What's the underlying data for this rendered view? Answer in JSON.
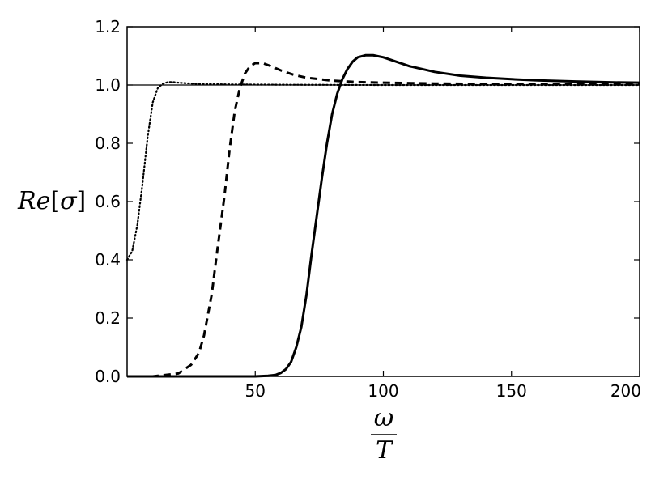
{
  "chart_data": {
    "type": "line",
    "title": "",
    "xlabel": {
      "numerator": "ω",
      "denominator": "T"
    },
    "ylabel": {
      "prefix": "Re",
      "open": "[",
      "symbol": "σ",
      "close": "]"
    },
    "xlim": [
      0,
      200
    ],
    "ylim": [
      0,
      1.2
    ],
    "x_ticks": [
      50,
      100,
      150,
      200
    ],
    "x_tick_labels": [
      "50",
      "100",
      "150",
      "200"
    ],
    "y_ticks": [
      0,
      0.2,
      0.4,
      0.6,
      0.8,
      1.0,
      1.2
    ],
    "y_tick_labels": [
      "0.0",
      "0.2",
      "0.4",
      "0.6",
      "0.8",
      "1.0",
      "1.2"
    ],
    "grid": false,
    "reference_line": {
      "y": 1.0,
      "style": "solid-thin"
    },
    "series": [
      {
        "style": "dotted",
        "x": [
          0,
          2,
          4,
          6,
          8,
          10,
          12,
          14,
          16,
          18,
          20,
          25,
          30,
          40,
          60,
          100,
          150,
          200
        ],
        "y": [
          0.4,
          0.43,
          0.52,
          0.66,
          0.82,
          0.94,
          0.99,
          1.005,
          1.01,
          1.01,
          1.008,
          1.005,
          1.003,
          1.002,
          1.001,
          1.0,
          1.0,
          1.0
        ]
      },
      {
        "style": "dashed",
        "x": [
          0,
          10,
          15,
          20,
          25,
          28,
          30,
          33,
          35,
          38,
          40,
          42,
          44,
          46,
          48,
          50,
          53,
          56,
          60,
          65,
          70,
          80,
          90,
          100,
          120,
          150,
          200
        ],
        "y": [
          0.0,
          0.0,
          0.005,
          0.01,
          0.04,
          0.08,
          0.14,
          0.28,
          0.42,
          0.62,
          0.78,
          0.91,
          0.99,
          1.04,
          1.065,
          1.075,
          1.075,
          1.065,
          1.05,
          1.035,
          1.025,
          1.015,
          1.01,
          1.008,
          1.005,
          1.003,
          1.002
        ]
      },
      {
        "style": "solid",
        "x": [
          0,
          50,
          55,
          58,
          60,
          62,
          64,
          66,
          68,
          70,
          72,
          74,
          76,
          78,
          80,
          82,
          84,
          86,
          88,
          90,
          93,
          96,
          100,
          105,
          110,
          120,
          130,
          140,
          150,
          160,
          175,
          190,
          200
        ],
        "y": [
          0.0,
          0.0,
          0.002,
          0.005,
          0.012,
          0.025,
          0.05,
          0.1,
          0.17,
          0.28,
          0.42,
          0.55,
          0.68,
          0.8,
          0.9,
          0.97,
          1.02,
          1.055,
          1.08,
          1.095,
          1.102,
          1.102,
          1.095,
          1.08,
          1.065,
          1.045,
          1.032,
          1.025,
          1.02,
          1.016,
          1.012,
          1.009,
          1.008
        ]
      }
    ]
  }
}
